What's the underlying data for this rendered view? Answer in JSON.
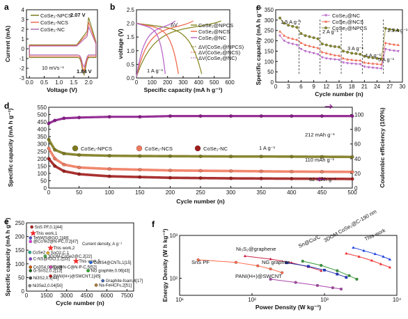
{
  "figure": {
    "panels": [
      "a",
      "b",
      "c",
      "d",
      "e",
      "f"
    ]
  },
  "chart_data": [
    {
      "id": "a",
      "type": "line",
      "xlabel": "Voltage (V)",
      "ylabel": "Current (mA)",
      "xlim": [
        -0.1,
        2.3
      ],
      "ylim": [
        -3,
        4
      ],
      "xticks": [
        "0.0",
        "0.5",
        "1.0",
        "1.5",
        "2.0"
      ],
      "yticks": [
        "-3",
        "-2",
        "-1",
        "0",
        "1",
        "2",
        "3",
        "4"
      ],
      "legend": [
        "CoSe2-NPCS",
        "CoSe2-NCS",
        "CoSe2-NC"
      ],
      "legend_position": "top-left",
      "annotations": [
        "10 mVs⁻¹",
        "2.07 V",
        "1.84 V"
      ],
      "colors": [
        "#7a7a1e",
        "#ee6a50",
        "#b06bb0"
      ]
    },
    {
      "id": "b",
      "type": "line",
      "xlabel": "Specific capacity (mA h g⁻¹)",
      "ylabel": "voltage (V)",
      "xlim": [
        0,
        600
      ],
      "ylim": [
        0.0,
        2.5
      ],
      "xticks": [
        "0",
        "100",
        "200",
        "300",
        "400",
        "500",
        "600"
      ],
      "yticks": [
        "0.0",
        "0.5",
        "1.0",
        "1.5",
        "2.0",
        "2.5"
      ],
      "legend": [
        "CoSe2@NPCS",
        "CoSe2@NCS",
        "CoSe2@NC"
      ],
      "legend2": [
        "ΔV(CoSe2@NPCS)",
        "ΔV(CoSe2@NCS)",
        "ΔV(CoSe2@NC)"
      ],
      "annotations": [
        "ΔV",
        "1 A g⁻¹"
      ],
      "series": [
        {
          "name": "CoSe2@NPCS",
          "discharge_end": 420,
          "charge_end": 545
        },
        {
          "name": "CoSe2@NCS",
          "discharge_end": 270,
          "charge_end": 365
        },
        {
          "name": "CoSe2@NC",
          "discharge_end": 185,
          "charge_end": 250
        }
      ]
    },
    {
      "id": "c",
      "type": "line",
      "xlabel": "Cycle number (n)",
      "ylabel": "Specific capacity (mA h g⁻¹)",
      "xlim": [
        0,
        30
      ],
      "ylim": [
        0,
        350
      ],
      "xticks": [
        "0",
        "3",
        "6",
        "9",
        "12",
        "15",
        "18",
        "21",
        "24",
        "27",
        "30"
      ],
      "yticks": [
        "0",
        "50",
        "100",
        "150",
        "200",
        "250",
        "300",
        "350"
      ],
      "legend": [
        "CoSe2@NC",
        "CoSe2@NCS",
        "CoSe2@NPCS"
      ],
      "rate_labels": [
        "1.5 A g⁻¹",
        "2 A g⁻¹",
        "3 A g⁻¹",
        "4 A g⁻¹",
        "5 A g⁻¹",
        "1.5 A g⁻¹"
      ],
      "cycles": [
        1,
        2,
        3,
        4,
        5,
        6,
        7,
        8,
        9,
        10,
        11,
        12,
        13,
        14,
        15,
        16,
        17,
        18,
        19,
        20,
        21,
        22,
        23,
        24,
        25,
        26,
        27,
        28,
        29
      ],
      "series": [
        {
          "name": "CoSe2@NPCS",
          "color": "#8a8a2a",
          "values": [
            310,
            285,
            275,
            270,
            265,
            235,
            225,
            220,
            215,
            210,
            185,
            180,
            175,
            172,
            170,
            150,
            145,
            140,
            138,
            135,
            125,
            120,
            118,
            115,
            112,
            260,
            255,
            252,
            250
          ]
        },
        {
          "name": "CoSe2@NCS",
          "color": "#ee6a50",
          "values": [
            245,
            225,
            215,
            210,
            205,
            190,
            180,
            175,
            170,
            165,
            145,
            140,
            135,
            130,
            128,
            115,
            110,
            108,
            106,
            105,
            95,
            92,
            90,
            88,
            86,
            190,
            185,
            182,
            180
          ]
        },
        {
          "name": "CoSe2@NC",
          "color": "#b867c8",
          "values": [
            225,
            200,
            190,
            185,
            180,
            160,
            150,
            145,
            140,
            135,
            120,
            115,
            112,
            110,
            108,
            95,
            92,
            90,
            88,
            87,
            75,
            72,
            70,
            68,
            66,
            160,
            155,
            152,
            150
          ]
        }
      ]
    },
    {
      "id": "d",
      "type": "line",
      "xlabel": "Cycle number (n)",
      "ylabel": "Specific capacity (mA h g⁻¹)",
      "ylabel2": "Coulombic efficiency (100%)",
      "xlim": [
        0,
        500
      ],
      "ylim": [
        0,
        550
      ],
      "y2lim": [
        0,
        110
      ],
      "xticks": [
        "0",
        "50",
        "100",
        "150",
        "200",
        "250",
        "300",
        "350",
        "400",
        "450",
        "500"
      ],
      "yticks": [
        "0",
        "50",
        "100",
        "150",
        "200",
        "250",
        "300",
        "350",
        "400",
        "450",
        "500",
        "550"
      ],
      "y2ticks": [
        "0",
        "20",
        "40",
        "60",
        "80",
        "100"
      ],
      "legend": [
        "CoSe2-NPCS",
        "CoSe2-NCS",
        "CoSe2-NC"
      ],
      "annotations": [
        "1 A g⁻¹",
        "212 mAh g⁻¹",
        "110 mAh g⁻¹",
        "62 mAh g⁻¹"
      ],
      "x": [
        0,
        10,
        25,
        50,
        100,
        150,
        200,
        250,
        300,
        350,
        400,
        450,
        500
      ],
      "series": [
        {
          "name": "CoSe2-NPCS",
          "color": "#7d7a1e",
          "values": [
            330,
            260,
            235,
            225,
            220,
            218,
            217,
            216,
            215,
            215,
            214,
            213,
            212
          ]
        },
        {
          "name": "CoSe2-NCS",
          "color": "#f07a5e",
          "values": [
            270,
            200,
            160,
            140,
            130,
            125,
            120,
            118,
            116,
            114,
            112,
            111,
            110
          ]
        },
        {
          "name": "CoSe2-NC",
          "color": "#a01c1c",
          "values": [
            200,
            150,
            115,
            95,
            80,
            75,
            70,
            68,
            66,
            65,
            64,
            63,
            62
          ]
        },
        {
          "name": "Coulombic efficiency",
          "color": "#8b1a8b",
          "axis": "right",
          "values": [
            88,
            92,
            95,
            96,
            97,
            97,
            98,
            98,
            98,
            98,
            98,
            98,
            98
          ]
        }
      ]
    },
    {
      "id": "e",
      "type": "scatter",
      "xlabel": "Cycle number (n)",
      "ylabel": "Specific capacity (mA h g⁻¹)",
      "xlim": [
        0,
        8000
      ],
      "ylim": [
        0,
        250
      ],
      "xticks": [
        "0",
        "1500",
        "3000",
        "4500",
        "6000",
        "7500"
      ],
      "yticks": [
        "0",
        "50",
        "100",
        "150",
        "200",
        "250"
      ],
      "annotation": "Current density, A g⁻¹",
      "points": [
        {
          "label": "SnS PF,0.1[44]",
          "x": 400,
          "y": 235,
          "color": "#b22222"
        },
        {
          "label": "This work,1",
          "x": 500,
          "y": 212,
          "color": "#ee2c2c",
          "star": true
        },
        {
          "label": "TeNWS@GO,1[48]",
          "x": 300,
          "y": 195,
          "color": "#5555cc"
        },
        {
          "label": "@CoTe2@N-PC,0.2[47]",
          "x": 300,
          "y": 182,
          "color": "#dd44dd"
        },
        {
          "label": "This work,2",
          "x": 1800,
          "y": 158,
          "color": "#ee2c2c",
          "star": true
        },
        {
          "label": "SnO2,C,1",
          "x": 1600,
          "y": 140,
          "color": "#ddaa22"
        },
        {
          "label": "CoSe2",
          "x": 250,
          "y": 142,
          "color": "#22aa88"
        },
        {
          "label": "3DOM-CoSe2@C,2[22]",
          "x": 1400,
          "y": 128,
          "color": "#44aa44"
        },
        {
          "label": "C-NS@rGO,1.2[33]",
          "x": 300,
          "y": 118,
          "color": "#8844cc"
        },
        {
          "label": "This work,5",
          "x": 3700,
          "y": 110,
          "color": "#ee2c2c",
          "star": true
        },
        {
          "label": "Co3S4@CNTs,1[15]",
          "x": 4800,
          "y": 105,
          "color": "#2266dd"
        },
        {
          "label": "Co3S4,0.05[49]",
          "x": 300,
          "y": 88,
          "color": "#cc5500"
        },
        {
          "label": "Cu@N-C@N-P-C,5[52]",
          "x": 1800,
          "y": 88,
          "color": "#cc44aa"
        },
        {
          "label": "G-SnS2,0.2[13]",
          "x": 300,
          "y": 75,
          "color": "#226622"
        },
        {
          "label": "NG graphite,0.06[43]",
          "x": 4600,
          "y": 75,
          "color": "#22aa22"
        },
        {
          "label": "PANI(H+)@SWCNT,1[45]",
          "x": 1800,
          "y": 55,
          "color": "#cc2222"
        },
        {
          "label": "Ni3S2,0.1[44]",
          "x": 300,
          "y": 48,
          "color": "#444444"
        },
        {
          "label": "Graphite-foam,4[17]",
          "x": 5700,
          "y": 38,
          "color": "#4466aa"
        },
        {
          "label": "Ni3Se2,0.04[50]",
          "x": 250,
          "y": 20,
          "color": "#888888"
        },
        {
          "label": "Na-FeHCFs,2[51]",
          "x": 5200,
          "y": 22,
          "color": "#aa7733"
        }
      ]
    },
    {
      "id": "f",
      "type": "line",
      "xlabel": "Power Density (W kg⁻¹)",
      "ylabel": "Energy Density (W h kg⁻¹)",
      "xscale": "log",
      "yscale": "log",
      "xlim": [
        10,
        10000
      ],
      "ylim": [
        40,
        1000
      ],
      "xticks": [
        "10¹",
        "10²",
        "10³",
        "10⁴"
      ],
      "yticks": [
        "10²",
        "10³"
      ],
      "series": [
        {
          "name": "SnS PF",
          "color": "#ff6a4a",
          "points": [
            [
              18,
              270
            ],
            [
              60,
              235
            ],
            [
              120,
              195
            ],
            [
              180,
              165
            ],
            [
              260,
              135
            ]
          ]
        },
        {
          "name": "Ni3S2@graphene",
          "color": "#cc2244",
          "points": [
            [
              80,
              330
            ],
            [
              180,
              280
            ],
            [
              350,
              230
            ],
            [
              600,
              185
            ],
            [
              900,
              150
            ]
          ]
        },
        {
          "name": "NG graphite",
          "color": "#2233aa",
          "points": [
            [
              300,
              230
            ],
            [
              600,
              190
            ],
            [
              1000,
              155
            ],
            [
              1500,
              125
            ],
            [
              2000,
              105
            ]
          ]
        },
        {
          "name": "Sn@Cu/C",
          "color": "#339933",
          "points": [
            [
              500,
              250
            ],
            [
              900,
              200
            ],
            [
              1500,
              150
            ],
            [
              2200,
              115
            ],
            [
              2800,
              95
            ]
          ]
        },
        {
          "name": "PANI(H+)@SWCNT",
          "color": "#aa44aa",
          "points": [
            [
              180,
              95
            ],
            [
              400,
              80
            ],
            [
              800,
              68
            ],
            [
              1300,
              60
            ],
            [
              1700,
              56
            ]
          ]
        },
        {
          "name": "3DOM CoSe2@C-190 nm",
          "color": "#ee3030",
          "points": [
            [
              2000,
              380
            ],
            [
              3000,
              320
            ],
            [
              4500,
              260
            ],
            [
              6000,
              215
            ],
            [
              8000,
              180
            ]
          ]
        },
        {
          "name": "This work",
          "color": "#2244dd",
          "points": [
            [
              2500,
              520
            ],
            [
              3500,
              440
            ],
            [
              5000,
              370
            ],
            [
              6500,
              320
            ],
            [
              8000,
              275
            ]
          ]
        }
      ]
    }
  ]
}
